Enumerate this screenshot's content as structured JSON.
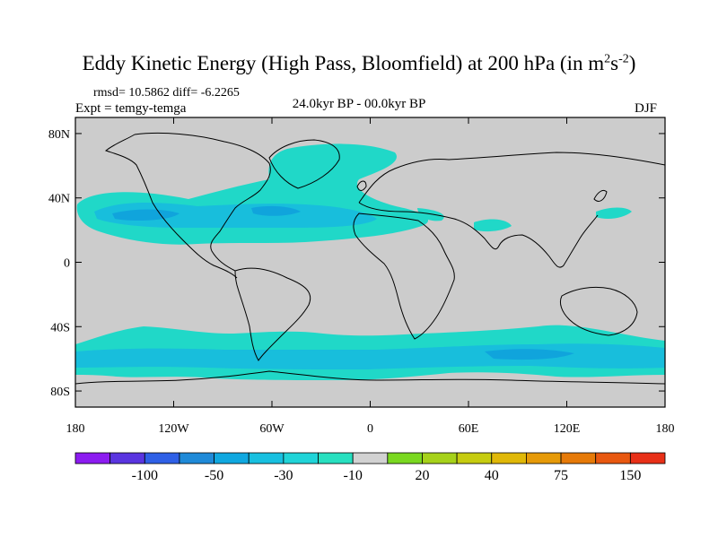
{
  "title": {
    "main": "Eddy Kinetic Energy (High Pass, Bloomfield) at 200 hPa (in m",
    "sup1": "2",
    "mid": "s",
    "sup2": "-2",
    "end": ")"
  },
  "stats": "rmsd= 10.5862 diff= -6.2265",
  "experiment": "Expt = temgy-temga",
  "period": "24.0kyr BP - 00.0kyr BP",
  "season": "DJF",
  "map": {
    "lat_ticks": [
      {
        "value": 80,
        "label": "80N"
      },
      {
        "value": 40,
        "label": "40N"
      },
      {
        "value": 0,
        "label": "0"
      },
      {
        "value": -40,
        "label": "40S"
      },
      {
        "value": -80,
        "label": "80S"
      }
    ],
    "lon_ticks": [
      {
        "value": -180,
        "label": "180"
      },
      {
        "value": -120,
        "label": "120W"
      },
      {
        "value": -60,
        "label": "60W"
      },
      {
        "value": 0,
        "label": "0"
      },
      {
        "value": 60,
        "label": "60E"
      },
      {
        "value": 120,
        "label": "120E"
      },
      {
        "value": 180,
        "label": "180"
      }
    ],
    "lon_range": [
      -180,
      180
    ],
    "lat_range": [
      -90,
      90
    ],
    "background_color": "#cccccc",
    "coast_color": "#000000"
  },
  "colorbar": {
    "colors": [
      "#8c1cf0",
      "#5a35e0",
      "#2f60e6",
      "#1f8ad8",
      "#10a8e0",
      "#18c0e0",
      "#20d4d8",
      "#28e0c0",
      "#d2d2d2",
      "#7ad820",
      "#a6d21a",
      "#c6cc10",
      "#e0b808",
      "#e69a08",
      "#e67a08",
      "#e85810",
      "#e83018"
    ],
    "labels": [
      {
        "text": "-100",
        "boundary": 2
      },
      {
        "text": "-50",
        "boundary": 4
      },
      {
        "text": "-30",
        "boundary": 6
      },
      {
        "text": "-10",
        "boundary": 8
      },
      {
        "text": "20",
        "boundary": 10
      },
      {
        "text": "40",
        "boundary": 12
      },
      {
        "text": "75",
        "boundary": 14
      },
      {
        "text": "150",
        "boundary": 16
      }
    ]
  },
  "fields": {
    "shade_light": "#20d8c8",
    "shade_mid": "#18bedc",
    "shade_dark": "#10a4dc"
  }
}
